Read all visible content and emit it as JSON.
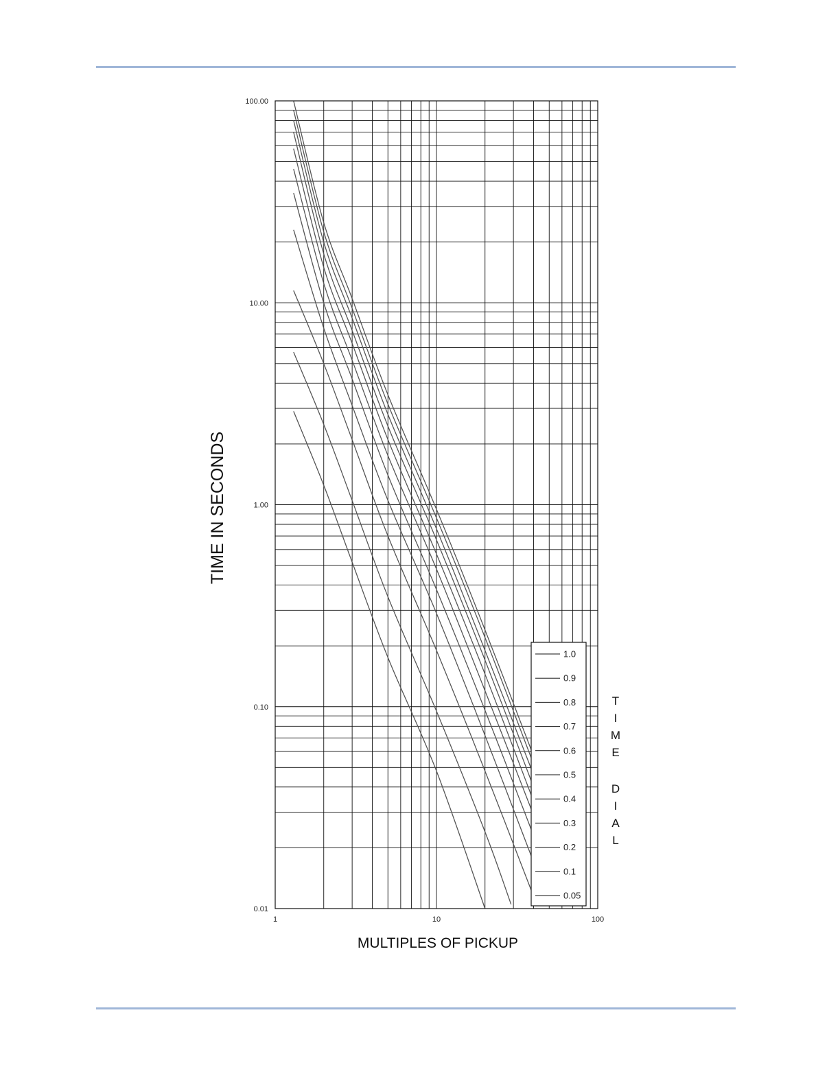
{
  "page": {
    "rule_color": "#9fb6d8"
  },
  "chart_data": {
    "type": "line",
    "title": "",
    "xlabel": "MULTIPLES OF PICKUP",
    "ylabel": "TIME IN SECONDS",
    "x_scale": "log",
    "y_scale": "log",
    "xlim": [
      1,
      100
    ],
    "ylim": [
      0.01,
      100
    ],
    "grid": true,
    "x_ticks": [
      {
        "value": 1,
        "label": "1"
      },
      {
        "value": 10,
        "label": "10"
      },
      {
        "value": 100,
        "label": "100"
      }
    ],
    "y_ticks": [
      {
        "value": 0.01,
        "label": "0.01"
      },
      {
        "value": 0.1,
        "label": "0.10"
      },
      {
        "value": 1,
        "label": "1.00"
      },
      {
        "value": 10,
        "label": "10.00"
      },
      {
        "value": 100,
        "label": "100.00"
      }
    ],
    "legend": {
      "placement": "bottom-right",
      "side_title": "TIME DIAL"
    },
    "line_color": "#555555",
    "grid_color": "#111111",
    "series": [
      {
        "name": "1.0",
        "x": [
          1.3,
          2,
          3,
          5,
          10,
          20,
          40
        ],
        "y": [
          100,
          25,
          10.5,
          3.5,
          0.95,
          0.24,
          0.057
        ]
      },
      {
        "name": "0.9",
        "x": [
          1.3,
          2,
          3,
          5,
          10,
          20,
          40
        ],
        "y": [
          90,
          22.5,
          9.4,
          3.15,
          0.86,
          0.22,
          0.052
        ]
      },
      {
        "name": "0.8",
        "x": [
          1.3,
          2,
          3,
          5,
          10,
          20,
          40
        ],
        "y": [
          80,
          20,
          8.4,
          2.8,
          0.76,
          0.19,
          0.046
        ]
      },
      {
        "name": "0.7",
        "x": [
          1.3,
          2,
          3,
          5,
          10,
          20,
          40
        ],
        "y": [
          70,
          17.5,
          7.3,
          2.45,
          0.67,
          0.17,
          0.04
        ]
      },
      {
        "name": "0.6",
        "x": [
          1.3,
          2,
          3,
          5,
          10,
          20,
          40
        ],
        "y": [
          58,
          15,
          6.3,
          2.1,
          0.57,
          0.145,
          0.034
        ]
      },
      {
        "name": "0.5",
        "x": [
          1.3,
          2,
          3,
          5,
          10,
          20,
          40
        ],
        "y": [
          46,
          12.5,
          5.2,
          1.75,
          0.48,
          0.12,
          0.029
        ]
      },
      {
        "name": "0.4",
        "x": [
          1.3,
          2,
          3,
          5,
          10,
          20,
          40
        ],
        "y": [
          35,
          10,
          4.2,
          1.4,
          0.38,
          0.096,
          0.023
        ]
      },
      {
        "name": "0.3",
        "x": [
          1.3,
          2,
          3,
          5,
          10,
          20,
          40
        ],
        "y": [
          23,
          7.5,
          3.1,
          1.05,
          0.29,
          0.072,
          0.017
        ]
      },
      {
        "name": "0.2",
        "x": [
          1.3,
          2,
          3,
          5,
          10,
          20,
          40
        ],
        "y": [
          11.5,
          5,
          2.1,
          0.7,
          0.19,
          0.048,
          0.0115
        ]
      },
      {
        "name": "0.1",
        "x": [
          1.3,
          2,
          3,
          5,
          10,
          20,
          29
        ],
        "y": [
          5.7,
          2.5,
          1.05,
          0.35,
          0.095,
          0.024,
          0.0105
        ]
      },
      {
        "name": "0.05",
        "x": [
          1.3,
          2,
          3,
          5,
          10,
          20
        ],
        "y": [
          2.9,
          1.25,
          0.52,
          0.175,
          0.048,
          0.01
        ]
      }
    ]
  }
}
